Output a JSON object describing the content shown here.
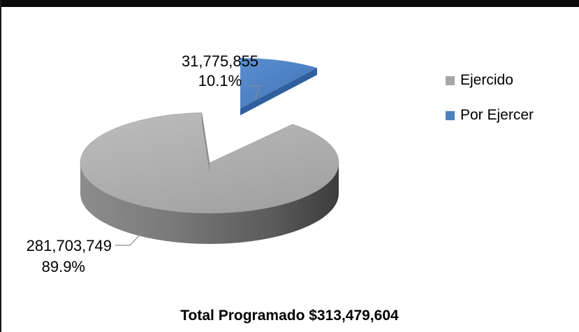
{
  "chart_data": {
    "type": "pie",
    "categories": [
      "Ejercido",
      "Por Ejercer"
    ],
    "values": [
      281703749,
      31775855
    ],
    "percentages": [
      "89.9%",
      "10.1%"
    ],
    "value_labels": [
      "281,703,749",
      "31,775,855"
    ],
    "colors": [
      "#a6a6a6",
      "#4f81bd"
    ],
    "legend_position": "right",
    "exploded": "Por Ejercer",
    "style": "3d",
    "title": ""
  },
  "legend": {
    "items": [
      {
        "label": "Ejercido",
        "color": "#a6a6a6"
      },
      {
        "label": "Por Ejercer",
        "color": "#4f81bd"
      }
    ]
  },
  "footer": {
    "text": "Total Programado $313,479,604"
  }
}
